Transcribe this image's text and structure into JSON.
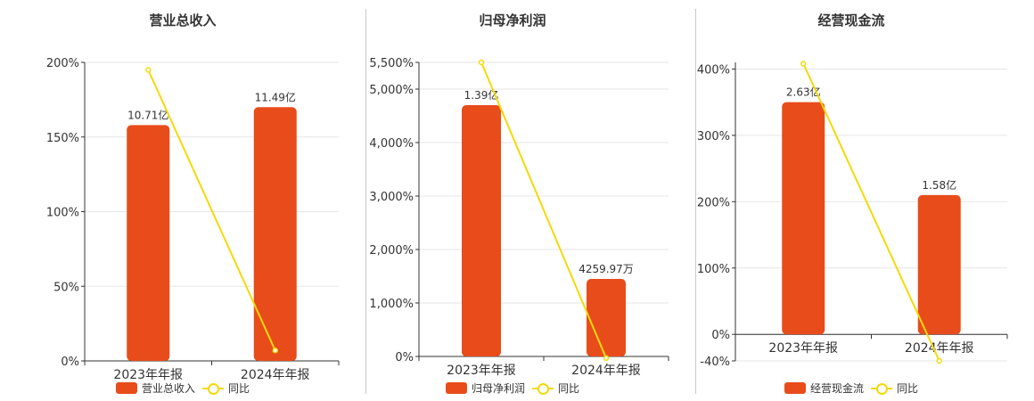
{
  "colors": {
    "bar": "#e84c1b",
    "line": "#f5d90a",
    "grid": "#e6e6e6",
    "axis": "#333333"
  },
  "legend": {
    "line_label": "同比"
  },
  "chart_data": [
    {
      "type": "bar",
      "title": "营业总收入",
      "categories": [
        "2023年年报",
        "2024年年报"
      ],
      "series": [
        {
          "name": "营业总收入",
          "type": "bar",
          "values": [
            158,
            170
          ],
          "labels": [
            "10.71亿",
            "11.49亿"
          ]
        },
        {
          "name": "同比",
          "type": "line",
          "values": [
            195,
            7
          ]
        }
      ],
      "ylim": [
        0,
        200
      ],
      "yticks": [
        "0%",
        "50%",
        "100%",
        "150%",
        "200%"
      ],
      "ytick_values": [
        0,
        50,
        100,
        150,
        200
      ],
      "grid": true,
      "legend": "bottom"
    },
    {
      "type": "bar",
      "title": "归母净利润",
      "categories": [
        "2023年年报",
        "2024年年报"
      ],
      "series": [
        {
          "name": "归母净利润",
          "type": "bar",
          "values": [
            4700,
            1450
          ],
          "labels": [
            "1.39亿",
            "4259.97万"
          ]
        },
        {
          "name": "同比",
          "type": "line",
          "values": [
            5500,
            -30
          ]
        }
      ],
      "ylim": [
        0,
        5500
      ],
      "yticks": [
        "0%",
        "1,000%",
        "2,000%",
        "3,000%",
        "4,000%",
        "5,000%",
        "5,500%"
      ],
      "ytick_values": [
        0,
        1000,
        2000,
        3000,
        4000,
        5000,
        5500
      ],
      "grid": true,
      "legend": "bottom"
    },
    {
      "type": "bar",
      "title": "经营现金流",
      "categories": [
        "2023年年报",
        "2024年年报"
      ],
      "series": [
        {
          "name": "经营现金流",
          "type": "bar",
          "values": [
            350,
            210
          ],
          "labels": [
            "2.63亿",
            "1.58亿"
          ]
        },
        {
          "name": "同比",
          "type": "line",
          "values": [
            408,
            -40
          ]
        }
      ],
      "ylim": [
        -40,
        410
      ],
      "yticks": [
        "-40%",
        "0%",
        "100%",
        "200%",
        "300%",
        "400%"
      ],
      "ytick_values": [
        -40,
        0,
        100,
        200,
        300,
        400
      ],
      "grid": true,
      "legend": "bottom"
    }
  ]
}
